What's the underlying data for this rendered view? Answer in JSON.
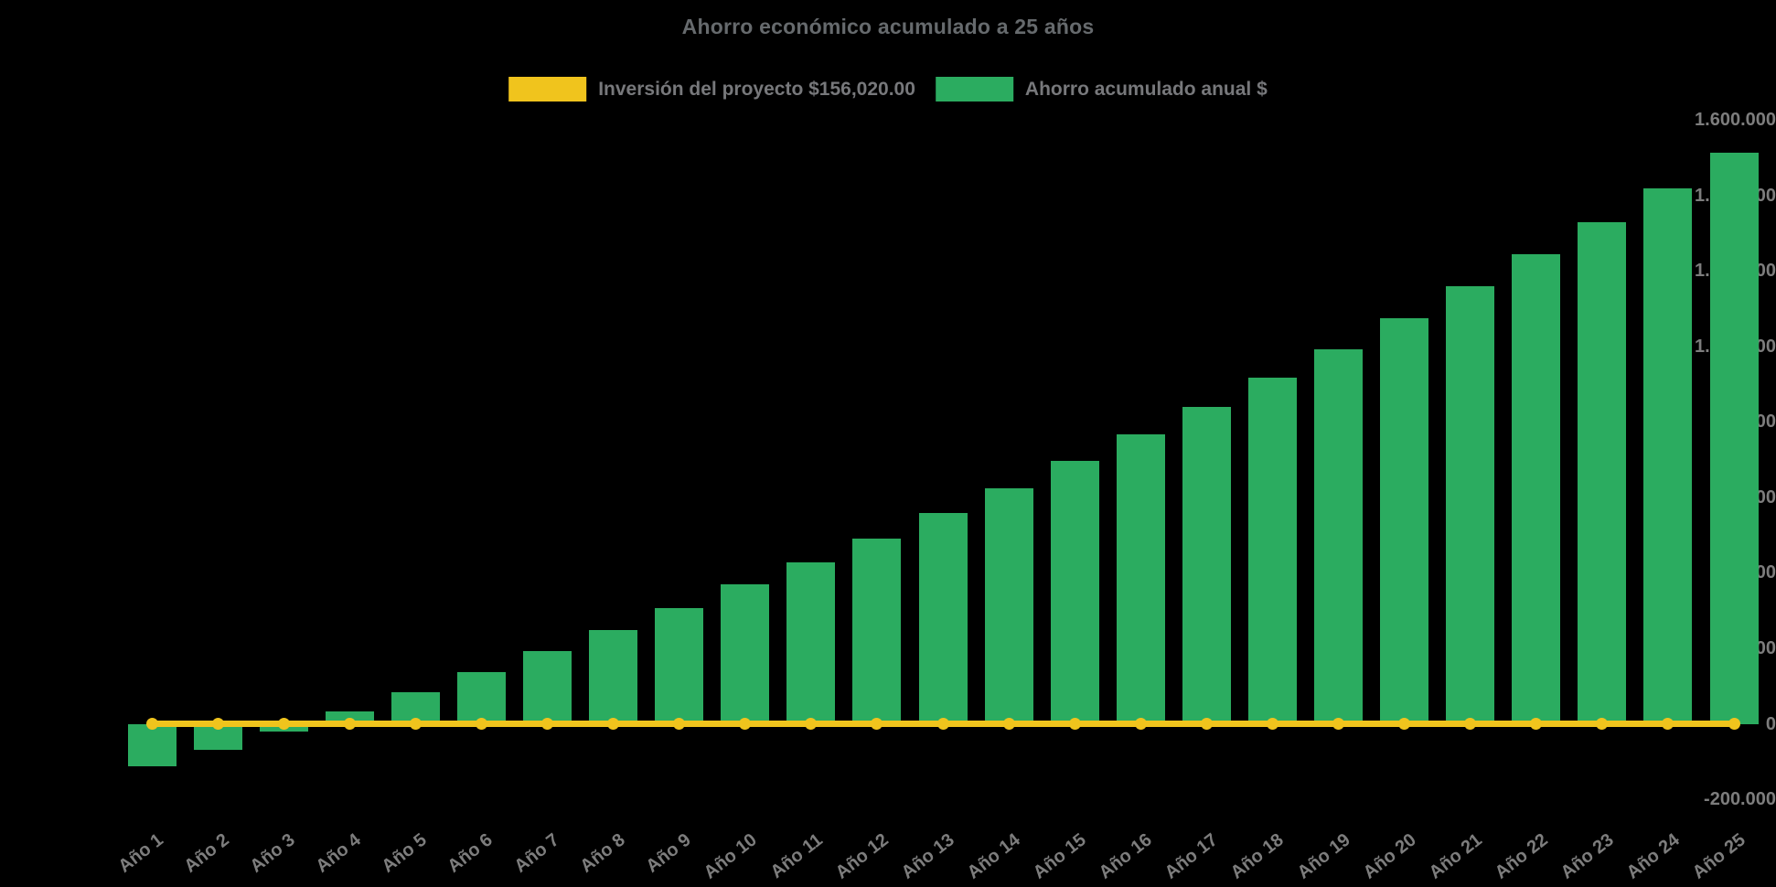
{
  "title": "Ahorro económico acumulado a 25 años",
  "legend": {
    "items": [
      {
        "label": "Inversión del proyecto $156,020.00",
        "color": "#F0C41D"
      },
      {
        "label": "Ahorro acumulado anual $",
        "color": "#2BAC60"
      }
    ]
  },
  "colors": {
    "background": "#000000",
    "bar": "#2BAC60",
    "line": "#F0C41D",
    "axis_text": "#7D7D7D",
    "title_text": "#666A6D"
  },
  "chart_data": {
    "type": "bar",
    "title": "Ahorro económico acumulado a 25 años",
    "categories": [
      "Año 1",
      "Año 2",
      "Año 3",
      "Año 4",
      "Año 5",
      "Año 6",
      "Año 7",
      "Año 8",
      "Año 9",
      "Año 10",
      "Año 11",
      "Año 12",
      "Año 13",
      "Año 14",
      "Año 15",
      "Año 16",
      "Año 17",
      "Año 18",
      "Año 19",
      "Año 20",
      "Año 21",
      "Año 22",
      "Año 23",
      "Año 24",
      "Año 25"
    ],
    "series": [
      {
        "name": "Inversión del proyecto $156,020.00",
        "type": "line",
        "color": "#F0C41D",
        "values": [
          0,
          0,
          0,
          0,
          0,
          0,
          0,
          0,
          0,
          0,
          0,
          0,
          0,
          0,
          0,
          0,
          0,
          0,
          0,
          0,
          0,
          0,
          0,
          0,
          0
        ]
      },
      {
        "name": "Ahorro acumulado anual $",
        "type": "bar",
        "color": "#2BAC60",
        "values": [
          -113000,
          -68000,
          -21000,
          34000,
          85000,
          136000,
          192000,
          248000,
          307000,
          369000,
          428000,
          491000,
          558000,
          625000,
          696000,
          766000,
          840000,
          917000,
          992000,
          1075000,
          1159000,
          1243000,
          1328000,
          1419000,
          1514000
        ]
      }
    ],
    "ylim": [
      -200000,
      1600000
    ],
    "y_ticks": [
      {
        "value": -200000,
        "label": "-200.000"
      },
      {
        "value": 0,
        "label": "0"
      },
      {
        "value": 200000,
        "label": "200.000"
      },
      {
        "value": 400000,
        "label": "400.000"
      },
      {
        "value": 600000,
        "label": "600.000"
      },
      {
        "value": 800000,
        "label": "800.000"
      },
      {
        "value": 1000000,
        "label": "1.000.000"
      },
      {
        "value": 1200000,
        "label": "1.200.000"
      },
      {
        "value": 1400000,
        "label": "1.400.000"
      },
      {
        "value": 1600000,
        "label": "1.600.000"
      }
    ],
    "grid": false,
    "legend_position": "top",
    "x_label_rotation": -38,
    "investment_value_label": "$156,020.00"
  }
}
